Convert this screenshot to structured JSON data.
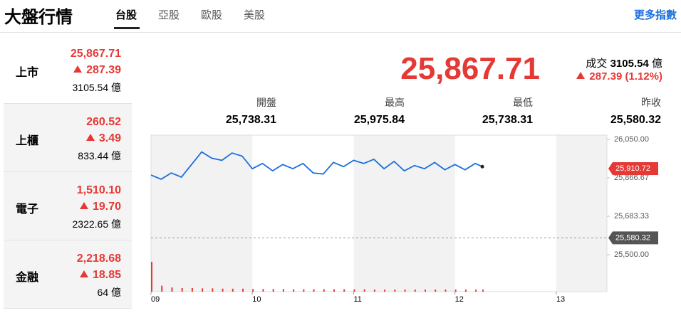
{
  "header": {
    "title": "大盤行情",
    "tabs": [
      "台股",
      "亞股",
      "歐股",
      "美股"
    ],
    "more": "更多指數"
  },
  "sidebar": [
    {
      "name": "上市",
      "price": "25,867.71",
      "change": "287.39",
      "volume": "3105.54 億"
    },
    {
      "name": "上櫃",
      "price": "260.52",
      "change": "3.49",
      "volume": "833.44 億"
    },
    {
      "name": "電子",
      "price": "1,510.10",
      "change": "19.70",
      "volume": "2322.65 億"
    },
    {
      "name": "金融",
      "price": "2,218.68",
      "change": "18.85",
      "volume": "64 億"
    }
  ],
  "summary": {
    "price": "25,867.71",
    "turnover_label": "成交",
    "turnover": "3105.54",
    "turnover_unit": "億",
    "change": "287.39",
    "change_pct": "(1.12%)",
    "stats": [
      {
        "label": "開盤",
        "value": "25,738.31"
      },
      {
        "label": "最高",
        "value": "25,975.84"
      },
      {
        "label": "最低",
        "value": "25,738.31"
      },
      {
        "label": "昨收",
        "value": "25,580.32"
      }
    ]
  },
  "chart_data": {
    "type": "line",
    "x": [
      9.0,
      9.1,
      9.2,
      9.3,
      9.4,
      9.5,
      9.6,
      9.7,
      9.8,
      9.9,
      10.0,
      10.1,
      10.2,
      10.3,
      10.4,
      10.5,
      10.6,
      10.7,
      10.8,
      10.9,
      11.0,
      11.1,
      11.2,
      11.3,
      11.4,
      11.5,
      11.6,
      11.7,
      11.8,
      11.9,
      12.0,
      12.1,
      12.2,
      12.27
    ],
    "series": [
      {
        "color": "#1a6fe0",
        "values": [
          25880,
          25860,
          25890,
          25870,
          25930,
          25990,
          25960,
          25950,
          25985,
          25970,
          25910,
          25935,
          25900,
          25930,
          25910,
          25935,
          25890,
          25885,
          25940,
          25920,
          25950,
          25935,
          25955,
          25910,
          25945,
          25900,
          25925,
          25910,
          25940,
          25905,
          25930,
          25905,
          25935,
          25920
        ]
      }
    ],
    "volume": {
      "color": "#e53935",
      "values": [
        100,
        20,
        14,
        12,
        12,
        11,
        11,
        10,
        10,
        10,
        9,
        9,
        9,
        9,
        8,
        8,
        8,
        8,
        8,
        8,
        8,
        8,
        7,
        7,
        7,
        7,
        7,
        7,
        7,
        7,
        7,
        7,
        7,
        7
      ]
    },
    "xlim": [
      9,
      13.5
    ],
    "xticks": [
      {
        "value": 9,
        "label": "09"
      },
      {
        "value": 10,
        "label": "10"
      },
      {
        "value": 11,
        "label": "11"
      },
      {
        "value": 12,
        "label": "12"
      },
      {
        "value": 13,
        "label": "13"
      }
    ],
    "ylim": [
      25480,
      26070
    ],
    "yticks": [
      {
        "value": 25500,
        "label": "25,500.00"
      },
      {
        "value": 25683.33,
        "label": "25,683.33"
      },
      {
        "value": 25866.67,
        "label": "25,866.67"
      },
      {
        "value": 26050,
        "label": "26,050.00"
      }
    ],
    "price_tags": [
      {
        "value": 25910.72,
        "label": "25,910.72",
        "color": "#e53935"
      },
      {
        "value": 25580.32,
        "label": "25,580.32",
        "color": "#555"
      }
    ]
  }
}
